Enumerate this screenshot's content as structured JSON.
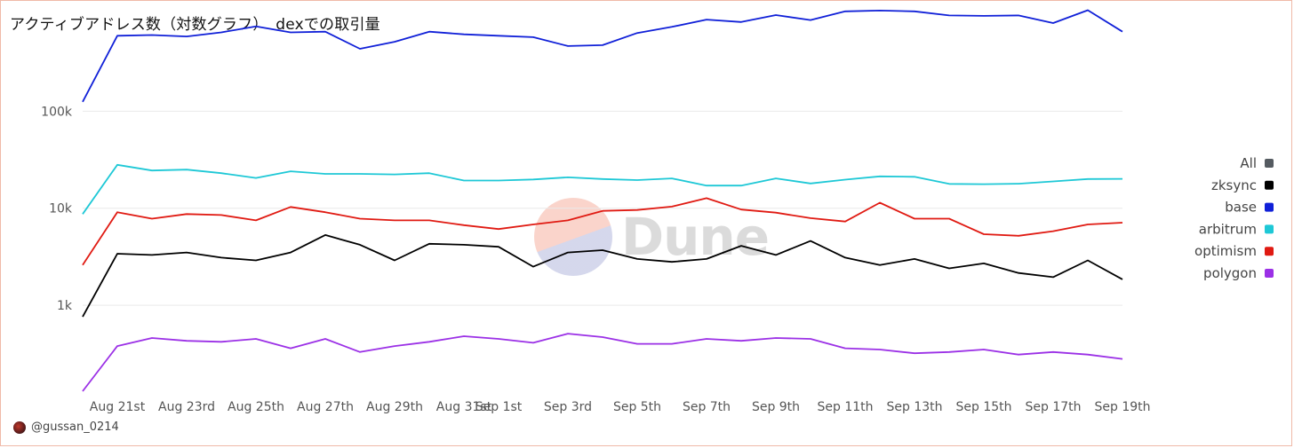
{
  "title": "アクティブアドレス数（対数グラフ）　dexでの取引量",
  "credit": "@gussan_0214",
  "watermark": "Dune",
  "chart_data": {
    "type": "line",
    "title": "アクティブアドレス数（対数グラフ）　dexでの取引量",
    "yscale": "log",
    "ylim": [
      130,
      900000
    ],
    "y_ticks": [
      {
        "value": 1000,
        "label": "1k"
      },
      {
        "value": 10000,
        "label": "10k"
      },
      {
        "value": 100000,
        "label": "100k"
      }
    ],
    "x": [
      "Aug 20th",
      "Aug 21st",
      "Aug 22nd",
      "Aug 23rd",
      "Aug 24th",
      "Aug 25th",
      "Aug 26th",
      "Aug 27th",
      "Aug 28th",
      "Aug 29th",
      "Aug 30th",
      "Aug 31st",
      "Sep 1st",
      "Sep 2nd",
      "Sep 3rd",
      "Sep 4th",
      "Sep 5th",
      "Sep 6th",
      "Sep 7th",
      "Sep 8th",
      "Sep 9th",
      "Sep 10th",
      "Sep 11th",
      "Sep 12th",
      "Sep 13th",
      "Sep 14th",
      "Sep 15th",
      "Sep 16th",
      "Sep 17th",
      "Sep 18th",
      "Sep 19th"
    ],
    "x_tick_labels": [
      {
        "index": 1,
        "label": "Aug 21st"
      },
      {
        "index": 3,
        "label": "Aug 23rd"
      },
      {
        "index": 5,
        "label": "Aug 25th"
      },
      {
        "index": 7,
        "label": "Aug 27th"
      },
      {
        "index": 9,
        "label": "Aug 29th"
      },
      {
        "index": 11,
        "label": "Aug 31st"
      },
      {
        "index": 12,
        "label": "Sep 1st"
      },
      {
        "index": 14,
        "label": "Sep 3rd"
      },
      {
        "index": 16,
        "label": "Sep 5th"
      },
      {
        "index": 18,
        "label": "Sep 7th"
      },
      {
        "index": 20,
        "label": "Sep 9th"
      },
      {
        "index": 22,
        "label": "Sep 11th"
      },
      {
        "index": 24,
        "label": "Sep 13th"
      },
      {
        "index": 26,
        "label": "Sep 15th"
      },
      {
        "index": 28,
        "label": "Sep 17th"
      },
      {
        "index": 30,
        "label": "Sep 19th"
      }
    ],
    "grid": true,
    "legend_position": "right",
    "legend": [
      {
        "name": "All",
        "color": "#555b61"
      },
      {
        "name": "zksync",
        "color": "#000000"
      },
      {
        "name": "base",
        "color": "#1020d8"
      },
      {
        "name": "arbitrum",
        "color": "#1ec8d6"
      },
      {
        "name": "optimism",
        "color": "#e01a12"
      },
      {
        "name": "polygon",
        "color": "#9b30e6"
      }
    ],
    "series": [
      {
        "name": "base",
        "color": "#1020d8",
        "values": [
          125000,
          600000,
          610000,
          590000,
          650000,
          750000,
          650000,
          660000,
          440000,
          520000,
          660000,
          620000,
          600000,
          580000,
          470000,
          480000,
          640000,
          740000,
          880000,
          830000,
          980000,
          870000,
          1070000,
          1090000,
          1070000,
          970000,
          960000,
          970000,
          810000,
          1100000,
          660000
        ]
      },
      {
        "name": "arbitrum",
        "color": "#1ec8d6",
        "values": [
          8700,
          28000,
          24500,
          25000,
          23000,
          20500,
          24000,
          22600,
          22600,
          22300,
          23000,
          19300,
          19300,
          19800,
          20800,
          20000,
          19500,
          20300,
          17100,
          17100,
          20300,
          18000,
          19700,
          21300,
          21100,
          17800,
          17700,
          17900,
          18900,
          20000,
          20100
        ]
      },
      {
        "name": "optimism",
        "color": "#e01a12",
        "values": [
          2600,
          9100,
          7800,
          8700,
          8500,
          7500,
          10300,
          9100,
          7800,
          7500,
          7500,
          6700,
          6100,
          6800,
          7500,
          9400,
          9600,
          10400,
          12700,
          9700,
          9000,
          7900,
          7300,
          11400,
          7800,
          7800,
          5400,
          5200,
          5800,
          6800,
          7100
        ]
      },
      {
        "name": "zksync",
        "color": "#000000",
        "values": [
          760,
          3400,
          3300,
          3500,
          3100,
          2900,
          3500,
          5300,
          4200,
          2900,
          4300,
          4200,
          4000,
          2500,
          3500,
          3700,
          3000,
          2800,
          3000,
          4100,
          3300,
          4600,
          3100,
          2600,
          3000,
          2400,
          2700,
          2150,
          1950,
          2900,
          1850
        ]
      },
      {
        "name": "polygon",
        "color": "#9b30e6",
        "values": [
          130,
          380,
          460,
          430,
          420,
          450,
          360,
          450,
          330,
          380,
          420,
          480,
          450,
          410,
          510,
          470,
          400,
          400,
          450,
          430,
          460,
          450,
          360,
          350,
          320,
          330,
          350,
          310,
          330,
          310,
          280
        ]
      }
    ]
  }
}
